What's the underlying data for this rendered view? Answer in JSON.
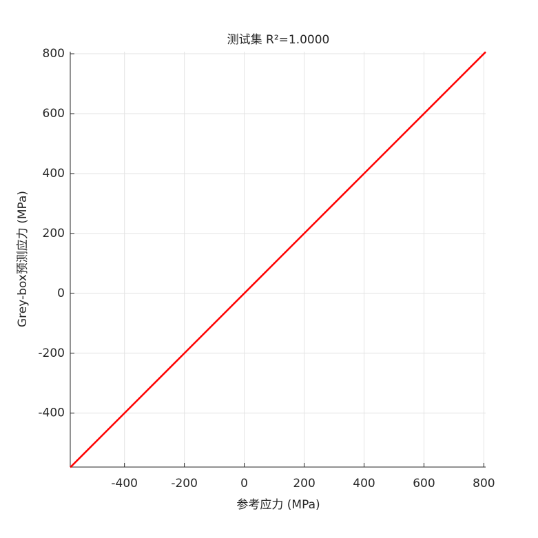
{
  "chart_data": {
    "type": "line",
    "title": "测试集 R²=1.0000",
    "x_label": "参考应力 (MPa)",
    "y_label": "Grey-box预测应力 (MPa)",
    "x": [
      -581,
      806
    ],
    "series": [
      {
        "color": "#ff0000",
        "values": [
          -581,
          806
        ]
      }
    ],
    "xlim": [
      -581,
      806
    ],
    "ylim": [
      -580,
      807
    ],
    "xticks": [
      -400,
      -200,
      0,
      200,
      400,
      600,
      800
    ],
    "yticks": [
      -400,
      -200,
      0,
      200,
      400,
      600,
      800
    ],
    "grid": true
  }
}
